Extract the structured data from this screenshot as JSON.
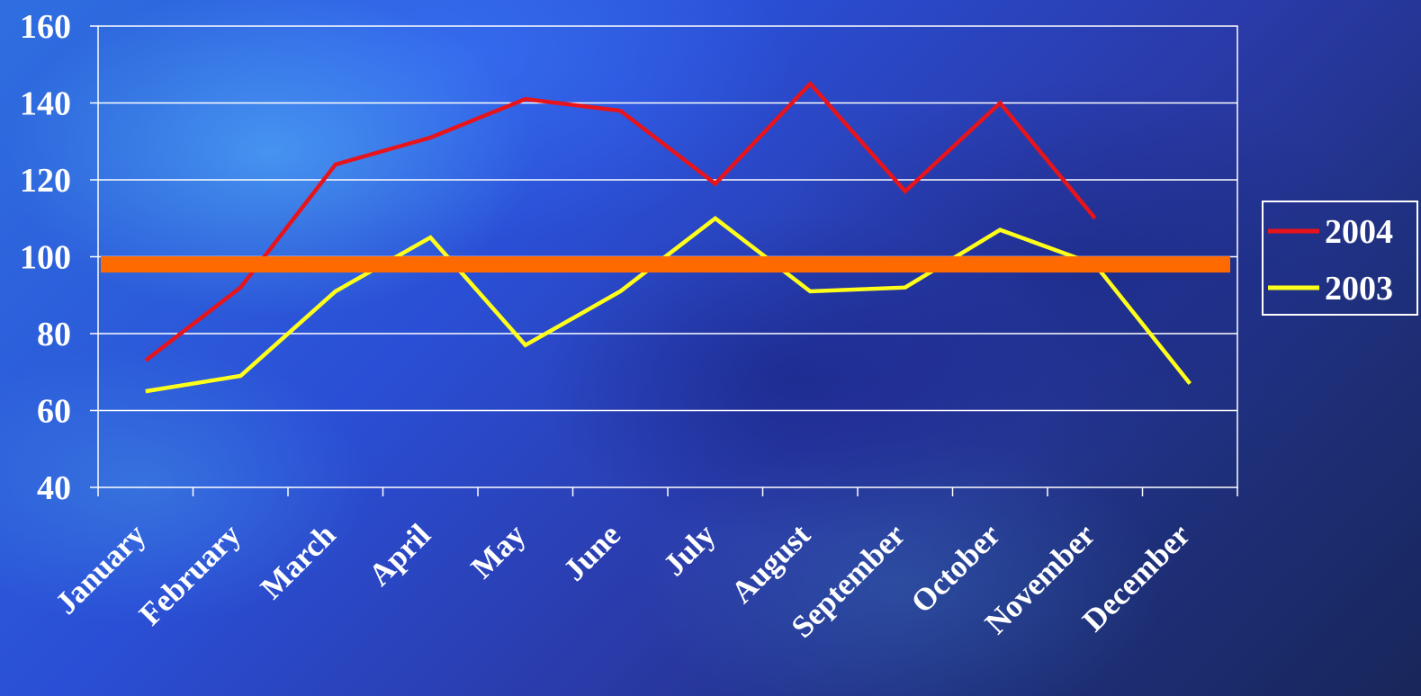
{
  "chart_data": {
    "type": "line",
    "title": "",
    "xlabel": "",
    "ylabel": "",
    "categories": [
      "January",
      "February",
      "March",
      "April",
      "May",
      "June",
      "July",
      "August",
      "September",
      "October",
      "November",
      "December"
    ],
    "yticks": [
      "40",
      "60",
      "80",
      "100",
      "120",
      "140",
      "160"
    ],
    "ylim": [
      40,
      160
    ],
    "grid": true,
    "legend_position": "right",
    "series": [
      {
        "name": "2004",
        "color": "#e8141b",
        "values": [
          73,
          92,
          124,
          131,
          141,
          138,
          119,
          145,
          117,
          140,
          110,
          null
        ]
      },
      {
        "name": "2003",
        "color": "#ffff1a",
        "values": [
          65,
          69,
          91,
          105,
          77,
          91,
          110,
          91,
          92,
          107,
          98,
          67
        ]
      }
    ],
    "reference_line": {
      "value": 98,
      "color": "#ff6a00"
    }
  }
}
